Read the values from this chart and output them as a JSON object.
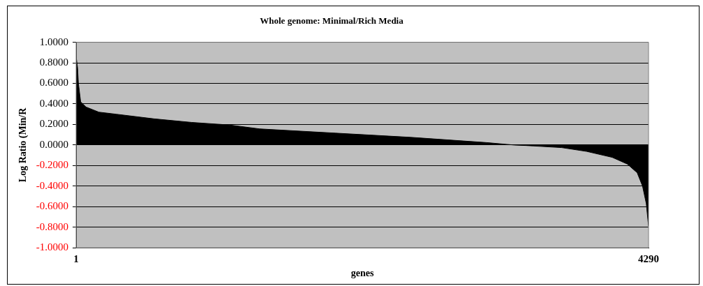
{
  "chart_data": {
    "type": "area",
    "title": "Whole genome: Minimal/Rich Media",
    "xlabel": "genes",
    "ylabel": "Log Ratio (Min/R",
    "x": [
      1,
      12,
      18,
      35,
      75,
      171,
      301,
      584,
      867,
      1150,
      1376,
      1942,
      2507,
      3073,
      3283,
      3373,
      3639,
      3826,
      4018,
      4131,
      4205,
      4245,
      4273,
      4290
    ],
    "values": [
      0.86,
      0.75,
      0.6,
      0.42,
      0.37,
      0.32,
      0.3,
      0.255,
      0.22,
      0.195,
      0.157,
      0.116,
      0.075,
      0.024,
      0,
      -0.005,
      -0.025,
      -0.062,
      -0.12,
      -0.185,
      -0.27,
      -0.4,
      -0.57,
      -0.79
    ],
    "color": "#000000",
    "xlim": [
      1,
      4290
    ],
    "xticks": [
      1,
      4290
    ],
    "ylim": [
      -1,
      1
    ],
    "yticks": [
      {
        "value": -1,
        "label": "-1.0000"
      },
      {
        "value": -0.8,
        "label": "-0.8000"
      },
      {
        "value": -0.6,
        "label": "-0.6000"
      },
      {
        "value": -0.4,
        "label": "-0.4000"
      },
      {
        "value": -0.2,
        "label": "-0.2000"
      },
      {
        "value": 0,
        "label": "0.0000"
      },
      {
        "value": 0.2,
        "label": "0.2000"
      },
      {
        "value": 0.4,
        "label": "0.4000"
      },
      {
        "value": 0.6,
        "label": "0.6000"
      },
      {
        "value": 0.8,
        "label": "0.8000"
      },
      {
        "value": 1,
        "label": "1.0000"
      }
    ],
    "grid": "y",
    "legend": false,
    "marker": "none"
  }
}
